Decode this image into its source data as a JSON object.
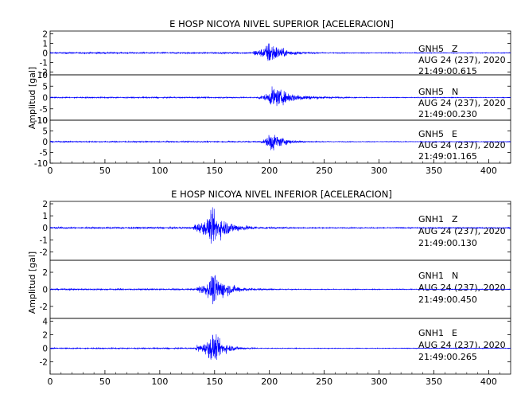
{
  "chart_data": [
    {
      "type": "line",
      "title": "E HOSP NICOYA NIVEL SUPERIOR [ACELERACION]",
      "ylabel": "Amplitud [gal]",
      "xlim": [
        0,
        420
      ],
      "xticks": [
        0,
        50,
        100,
        150,
        200,
        250,
        300,
        350,
        400
      ],
      "line_color": "#0000ff",
      "grid": false,
      "series": [
        {
          "name": "GNH5 Z",
          "station": "GNH5",
          "component": "Z",
          "date": "AUG 24 (237), 2020",
          "time": "21:49:00.615",
          "ylim": [
            -2.3,
            2.3
          ],
          "yticks": [
            -2,
            -1,
            0,
            1,
            2
          ],
          "event_start": 185,
          "peak_time": 200,
          "peak_amplitude": 2.2,
          "noise": 0.07,
          "decay": 11,
          "onset_amplitude": 0.45
        },
        {
          "name": "GNH5 N",
          "station": "GNH5",
          "component": "N",
          "date": "AUG 24 (237), 2020",
          "time": "21:49:00.230",
          "ylim": [
            -10,
            10
          ],
          "yticks": [
            -10,
            -5,
            0,
            5,
            10
          ],
          "event_start": 190,
          "peak_time": 203,
          "peak_amplitude": 8.0,
          "noise": 0.25,
          "decay": 18,
          "onset_amplitude": 1.2
        },
        {
          "name": "GNH5 E",
          "station": "GNH5",
          "component": "E",
          "date": "AUG 24 (237), 2020",
          "time": "21:49:01.165",
          "ylim": [
            -10,
            10
          ],
          "yticks": [
            -10,
            -5,
            0,
            5,
            10
          ],
          "event_start": 192,
          "peak_time": 201,
          "peak_amplitude": 9.0,
          "noise": 0.25,
          "decay": 10,
          "onset_amplitude": 1.0
        }
      ]
    },
    {
      "type": "line",
      "title": "E HOSP NICOYA NIVEL INFERIOR [ACELERACION]",
      "ylabel": "Amplitud [gal]",
      "xlim": [
        0,
        420
      ],
      "xticks": [
        0,
        50,
        100,
        150,
        200,
        250,
        300,
        350,
        400
      ],
      "line_color": "#0000ff",
      "grid": false,
      "series": [
        {
          "name": "GNH1 Z",
          "station": "GNH1",
          "component": "Z",
          "date": "AUG 24 (237), 2020",
          "time": "21:49:00.130",
          "ylim": [
            -2.7,
            2.2
          ],
          "yticks": [
            -2,
            -1,
            0,
            1,
            2
          ],
          "event_start": 131,
          "peak_time": 148,
          "peak_amplitude": 2.4,
          "noise": 0.07,
          "decay": 14,
          "onset_amplitude": 0.6
        },
        {
          "name": "GNH1 N",
          "station": "GNH1",
          "component": "N",
          "date": "AUG 24 (237), 2020",
          "time": "21:49:00.450",
          "ylim": [
            -3.4,
            3.4
          ],
          "yticks": [
            -2,
            0,
            2
          ],
          "event_start": 134,
          "peak_time": 149,
          "peak_amplitude": 3.3,
          "noise": 0.08,
          "decay": 12,
          "onset_amplitude": 0.7
        },
        {
          "name": "GNH1 E",
          "station": "GNH1",
          "component": "E",
          "date": "AUG 24 (237), 2020",
          "time": "21:49:00.265",
          "ylim": [
            -3.8,
            4.4
          ],
          "yticks": [
            -2,
            0,
            2,
            4
          ],
          "event_start": 133,
          "peak_time": 148,
          "peak_amplitude": 3.9,
          "noise": 0.08,
          "decay": 10,
          "onset_amplitude": 0.8
        }
      ]
    }
  ]
}
